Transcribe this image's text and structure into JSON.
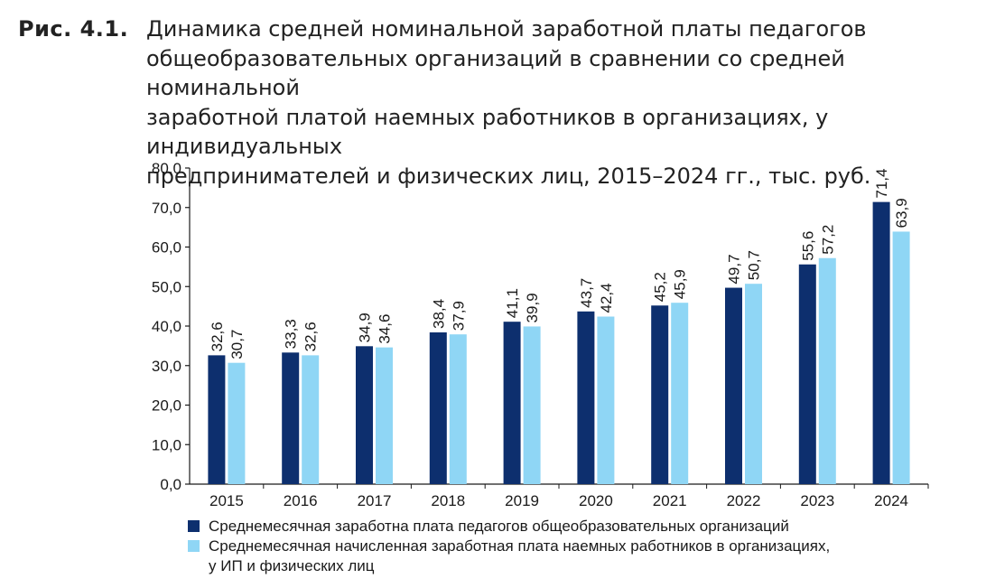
{
  "figure": {
    "label": "Рис. 4.1.",
    "title": "Динамика средней номинальной заработной платы педагогов\nобщеобразовательных организаций в сравнении со средней номинальной\nзаработной платой наемных работников в организациях, у индивидуальных\nпредпринимателей и физических лиц, 2015–2024 гг., тыс. руб."
  },
  "chart_data": {
    "type": "bar",
    "title": "Динамика средней номинальной заработной платы педагогов общеобразовательных организаций в сравнении со средней номинальной заработной платой наемных работников в организациях, у индивидуальных предпринимателей и физических лиц, 2015–2024 гг., тыс. руб.",
    "categories": [
      "2015",
      "2016",
      "2017",
      "2018",
      "2019",
      "2020",
      "2021",
      "2022",
      "2023",
      "2024"
    ],
    "series": [
      {
        "name": "Среднемесячная заработна плата педагогов общеобразовательных организаций",
        "color": "#0d2f6e",
        "values": [
          32.6,
          33.3,
          34.9,
          38.4,
          41.1,
          43.7,
          45.2,
          49.7,
          55.6,
          71.4
        ],
        "labels": [
          "32,6",
          "33,3",
          "34,9",
          "38,4",
          "41,1",
          "43,7",
          "45,2",
          "49,7",
          "55,6",
          "71,4"
        ]
      },
      {
        "name": "Среднемесячная начисленная заработная плата наемных работников в организациях,\nу ИП и физических лиц",
        "color": "#8fd6f5",
        "values": [
          30.7,
          32.6,
          34.6,
          37.9,
          39.9,
          42.4,
          45.9,
          50.7,
          57.2,
          63.9
        ],
        "labels": [
          "30,7",
          "32,6",
          "34,6",
          "37,9",
          "39,9",
          "42,4",
          "45,9",
          "50,7",
          "57,2",
          "63,9"
        ]
      }
    ],
    "yticks": [
      0,
      10,
      20,
      30,
      40,
      50,
      60,
      70,
      80
    ],
    "ytick_labels": [
      "0,0",
      "10,0",
      "20,0",
      "30,0",
      "40,0",
      "50,0",
      "60,0",
      "70,0",
      "80,0"
    ],
    "ylim": [
      0,
      80
    ],
    "xlabel": "",
    "ylabel": "",
    "grid": false,
    "legend_position": "bottom"
  }
}
